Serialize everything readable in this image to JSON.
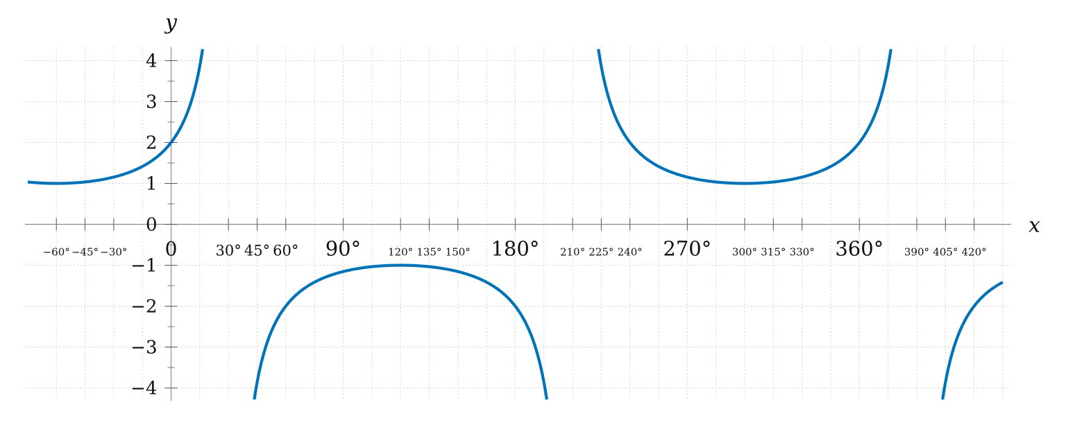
{
  "chart_data": {
    "type": "line",
    "xlabel": "x",
    "ylabel": "y",
    "xlim": [
      -75,
      435
    ],
    "ylim": [
      -4.3,
      4.3
    ],
    "grid": true,
    "x_ticks": [
      {
        "value": -60,
        "label": "−60°",
        "size": "small"
      },
      {
        "value": -45,
        "label": "−45°",
        "size": "small"
      },
      {
        "value": -30,
        "label": "−30°",
        "size": "small"
      },
      {
        "value": 30,
        "label": "30°",
        "size": "medium"
      },
      {
        "value": 45,
        "label": "45°",
        "size": "medium"
      },
      {
        "value": 60,
        "label": "60°",
        "size": "medium"
      },
      {
        "value": 90,
        "label": "90°",
        "size": "large"
      },
      {
        "value": 120,
        "label": "120°",
        "size": "small"
      },
      {
        "value": 135,
        "label": "135°",
        "size": "small"
      },
      {
        "value": 150,
        "label": "150°",
        "size": "small"
      },
      {
        "value": 180,
        "label": "180°",
        "size": "large"
      },
      {
        "value": 210,
        "label": "210°",
        "size": "small"
      },
      {
        "value": 225,
        "label": "225°",
        "size": "small"
      },
      {
        "value": 240,
        "label": "240°",
        "size": "small"
      },
      {
        "value": 270,
        "label": "270°",
        "size": "large"
      },
      {
        "value": 300,
        "label": "300°",
        "size": "small"
      },
      {
        "value": 315,
        "label": "315°",
        "size": "small"
      },
      {
        "value": 330,
        "label": "330°",
        "size": "small"
      },
      {
        "value": 360,
        "label": "360°",
        "size": "large"
      },
      {
        "value": 390,
        "label": "390°",
        "size": "small"
      },
      {
        "value": 405,
        "label": "405°",
        "size": "small"
      },
      {
        "value": 420,
        "label": "420°",
        "size": "small"
      }
    ],
    "origin_label": "0",
    "y_ticks": [
      {
        "value": 4,
        "label": "4"
      },
      {
        "value": 3,
        "label": "3"
      },
      {
        "value": 2,
        "label": "2"
      },
      {
        "value": 1,
        "label": "1"
      },
      {
        "value": 0,
        "label": "0"
      },
      {
        "value": -1,
        "label": "−1"
      },
      {
        "value": -2,
        "label": "−2"
      },
      {
        "value": -3,
        "label": "−3"
      },
      {
        "value": -4,
        "label": "−4"
      }
    ],
    "series": [
      {
        "function": "sec(x + 60°)",
        "color": "#0072b8",
        "asymptotes": [
          30,
          210,
          390
        ],
        "points": [
          {
            "x": -75,
            "y": 1.035
          },
          {
            "x": -60,
            "y": 1.0
          },
          {
            "x": -30,
            "y": 1.155
          },
          {
            "x": 0,
            "y": 2.0
          },
          {
            "x": 15,
            "y": 4.3
          },
          {
            "x": 45,
            "y": -4.3
          },
          {
            "x": 60,
            "y": -2.0
          },
          {
            "x": 120,
            "y": -1.0
          },
          {
            "x": 180,
            "y": -2.0
          },
          {
            "x": 195,
            "y": -4.3
          },
          {
            "x": 225,
            "y": 4.3
          },
          {
            "x": 240,
            "y": 2.0
          },
          {
            "x": 300,
            "y": 1.0
          },
          {
            "x": 360,
            "y": 2.0
          },
          {
            "x": 375,
            "y": 4.3
          },
          {
            "x": 405,
            "y": -4.3
          },
          {
            "x": 420,
            "y": -2.0
          },
          {
            "x": 435,
            "y": -1.414
          }
        ]
      }
    ]
  }
}
